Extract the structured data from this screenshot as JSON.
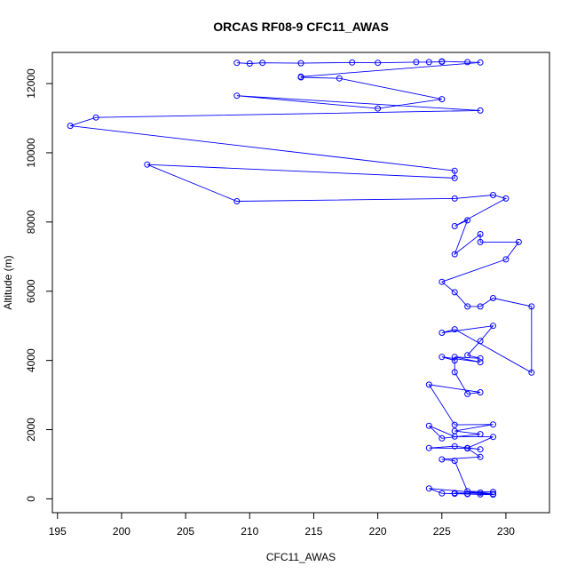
{
  "chart_data": {
    "type": "scatter",
    "title": "ORCAS RF08-9 CFC11_AWAS",
    "xlabel": "CFC11_AWAS",
    "ylabel": "Altitude (m)",
    "xlim": [
      194.6,
      233.4
    ],
    "ylim": [
      -400,
      12900
    ],
    "xticks": [
      195,
      200,
      205,
      210,
      215,
      220,
      225,
      230
    ],
    "yticks": [
      0,
      2000,
      4000,
      6000,
      8000,
      10000,
      12000
    ],
    "grid": false,
    "legend": "none",
    "series": [
      {
        "color": "#0000ff",
        "marker": "open-circle",
        "line": true,
        "x": [
          209,
          210,
          211,
          214,
          218,
          220,
          223,
          224,
          225,
          225,
          227,
          228,
          214,
          214,
          217,
          225,
          220,
          209,
          228,
          198,
          196,
          226,
          226,
          202,
          209,
          226,
          229,
          230,
          226,
          227,
          226,
          228,
          228,
          231,
          230,
          225,
          226,
          227,
          228,
          229,
          232,
          232,
          226,
          225,
          229,
          228,
          227,
          228,
          226,
          228,
          225,
          226,
          226,
          227,
          228,
          224,
          226,
          229,
          226,
          228,
          225,
          224,
          226,
          229,
          227,
          228,
          226,
          224,
          227,
          228,
          225,
          226,
          227,
          229,
          228,
          226,
          227,
          229,
          224,
          225,
          226,
          227,
          228,
          229
        ],
        "y": [
          12600,
          12580,
          12600,
          12590,
          12610,
          12600,
          12620,
          12620,
          12630,
          12640,
          12620,
          12610,
          12200,
          12180,
          12150,
          11550,
          11280,
          11650,
          11220,
          11020,
          10780,
          9480,
          9270,
          9660,
          8600,
          8680,
          8780,
          8680,
          7880,
          8050,
          7070,
          7650,
          7420,
          7420,
          6920,
          6270,
          5970,
          5560,
          5560,
          5800,
          5560,
          3650,
          4900,
          4800,
          5000,
          4560,
          4150,
          4060,
          4100,
          3950,
          4100,
          4000,
          3660,
          3030,
          3080,
          3300,
          2140,
          2150,
          1960,
          1870,
          1750,
          2110,
          1800,
          1790,
          1470,
          1430,
          1520,
          1470,
          1460,
          1210,
          1140,
          1100,
          220,
          200,
          180,
          170,
          150,
          140,
          300,
          160,
          150,
          140,
          130,
          120
        ]
      }
    ]
  }
}
